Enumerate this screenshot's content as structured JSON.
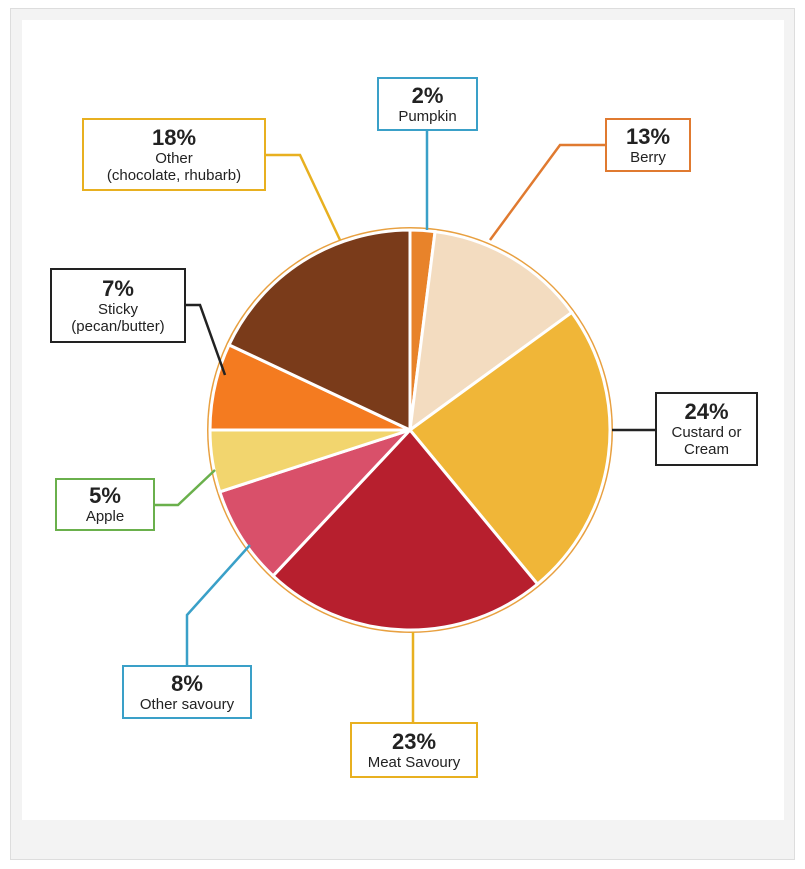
{
  "chart_data": {
    "type": "pie",
    "categories": [
      "Pumpkin",
      "Berry",
      "Custard or\nCream",
      "Meat Savoury",
      "Other savoury",
      "Apple",
      "Sticky\n(pecan/butter)",
      "Other\n(chocolate, rhubarb)"
    ],
    "values": [
      2,
      13,
      24,
      23,
      8,
      5,
      7,
      18
    ],
    "value_labels": [
      "2%",
      "13%",
      "24%",
      "23%",
      "8%",
      "5%",
      "7%",
      "18%"
    ],
    "colors": [
      "#e8832a",
      "#f3dcc0",
      "#f0b638",
      "#b71f2e",
      "#d9506a",
      "#f2d56e",
      "#f47b20",
      "#7a3b1a"
    ],
    "label_colors": [
      "#3aa0c8",
      "#e07a30",
      "#222222",
      "#e8b020",
      "#3aa0c8",
      "#6ab04c",
      "#222222",
      "#e8b020"
    ]
  }
}
